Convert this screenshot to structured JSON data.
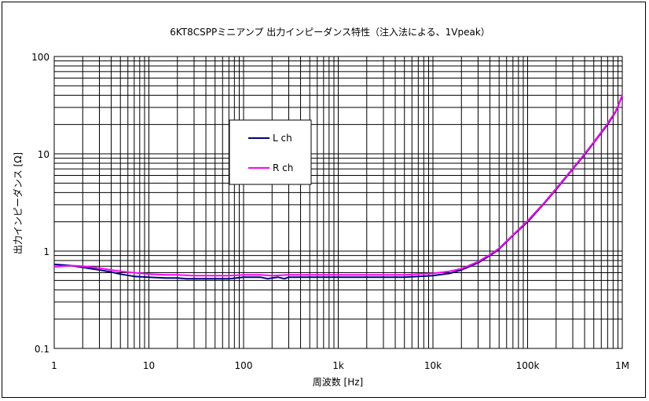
{
  "chart_data": {
    "type": "line",
    "title": "6KT8CSPPミニアンプ 出力インピーダンス特性（注入法による、1Vpeak）",
    "xlabel": "周波数 [Hz]",
    "ylabel": "出力インピーダンス [Ω]",
    "x_scale": "log",
    "y_scale": "log",
    "xlim": [
      1,
      1000000
    ],
    "ylim": [
      0.1,
      100
    ],
    "grid": true,
    "legend_position": "upper-left-inside",
    "x_tick_labels": [
      "1",
      "10",
      "100",
      "1k",
      "10k",
      "100k",
      "1M"
    ],
    "y_tick_labels": [
      "0.1",
      "1",
      "10",
      "100"
    ],
    "series": [
      {
        "name": "L ch",
        "color": "#000080",
        "points": [
          [
            1,
            0.73
          ],
          [
            1.5,
            0.71
          ],
          [
            2,
            0.68
          ],
          [
            3,
            0.64
          ],
          [
            4,
            0.61
          ],
          [
            5,
            0.58
          ],
          [
            7,
            0.55
          ],
          [
            10,
            0.54
          ],
          [
            15,
            0.53
          ],
          [
            20,
            0.53
          ],
          [
            25,
            0.52
          ],
          [
            30,
            0.52
          ],
          [
            50,
            0.52
          ],
          [
            70,
            0.52
          ],
          [
            100,
            0.54
          ],
          [
            150,
            0.54
          ],
          [
            180,
            0.52
          ],
          [
            200,
            0.53
          ],
          [
            230,
            0.54
          ],
          [
            270,
            0.52
          ],
          [
            300,
            0.54
          ],
          [
            500,
            0.54
          ],
          [
            1000,
            0.54
          ],
          [
            2000,
            0.54
          ],
          [
            5000,
            0.54
          ],
          [
            7000,
            0.55
          ],
          [
            10000,
            0.56
          ],
          [
            15000,
            0.59
          ],
          [
            20000,
            0.64
          ],
          [
            30000,
            0.76
          ],
          [
            40000,
            0.9
          ],
          [
            50000,
            1.05
          ],
          [
            70000,
            1.45
          ],
          [
            100000,
            2.0
          ],
          [
            150000,
            3.1
          ],
          [
            200000,
            4.3
          ],
          [
            300000,
            7.0
          ],
          [
            400000,
            9.8
          ],
          [
            500000,
            13.0
          ],
          [
            700000,
            20.0
          ],
          [
            850000,
            27.0
          ],
          [
            900000,
            30.5
          ],
          [
            1000000,
            40.0
          ]
        ]
      },
      {
        "name": "R ch",
        "color": "#ff00ff",
        "points": [
          [
            1,
            0.69
          ],
          [
            1.5,
            0.71
          ],
          [
            2,
            0.7
          ],
          [
            3,
            0.67
          ],
          [
            4,
            0.64
          ],
          [
            5,
            0.62
          ],
          [
            7,
            0.6
          ],
          [
            10,
            0.58
          ],
          [
            15,
            0.57
          ],
          [
            20,
            0.57
          ],
          [
            30,
            0.56
          ],
          [
            50,
            0.56
          ],
          [
            70,
            0.56
          ],
          [
            100,
            0.57
          ],
          [
            150,
            0.57
          ],
          [
            200,
            0.56
          ],
          [
            300,
            0.57
          ],
          [
            500,
            0.57
          ],
          [
            1000,
            0.57
          ],
          [
            2000,
            0.57
          ],
          [
            5000,
            0.57
          ],
          [
            7000,
            0.58
          ],
          [
            10000,
            0.59
          ],
          [
            15000,
            0.62
          ],
          [
            20000,
            0.66
          ],
          [
            30000,
            0.78
          ],
          [
            40000,
            0.92
          ],
          [
            50000,
            1.07
          ],
          [
            70000,
            1.47
          ],
          [
            100000,
            2.05
          ],
          [
            150000,
            3.15
          ],
          [
            200000,
            4.4
          ],
          [
            300000,
            7.1
          ],
          [
            400000,
            10.0
          ],
          [
            500000,
            13.2
          ],
          [
            700000,
            20.5
          ],
          [
            850000,
            27.5
          ],
          [
            900000,
            31.0
          ],
          [
            1000000,
            40.5
          ]
        ]
      }
    ]
  }
}
